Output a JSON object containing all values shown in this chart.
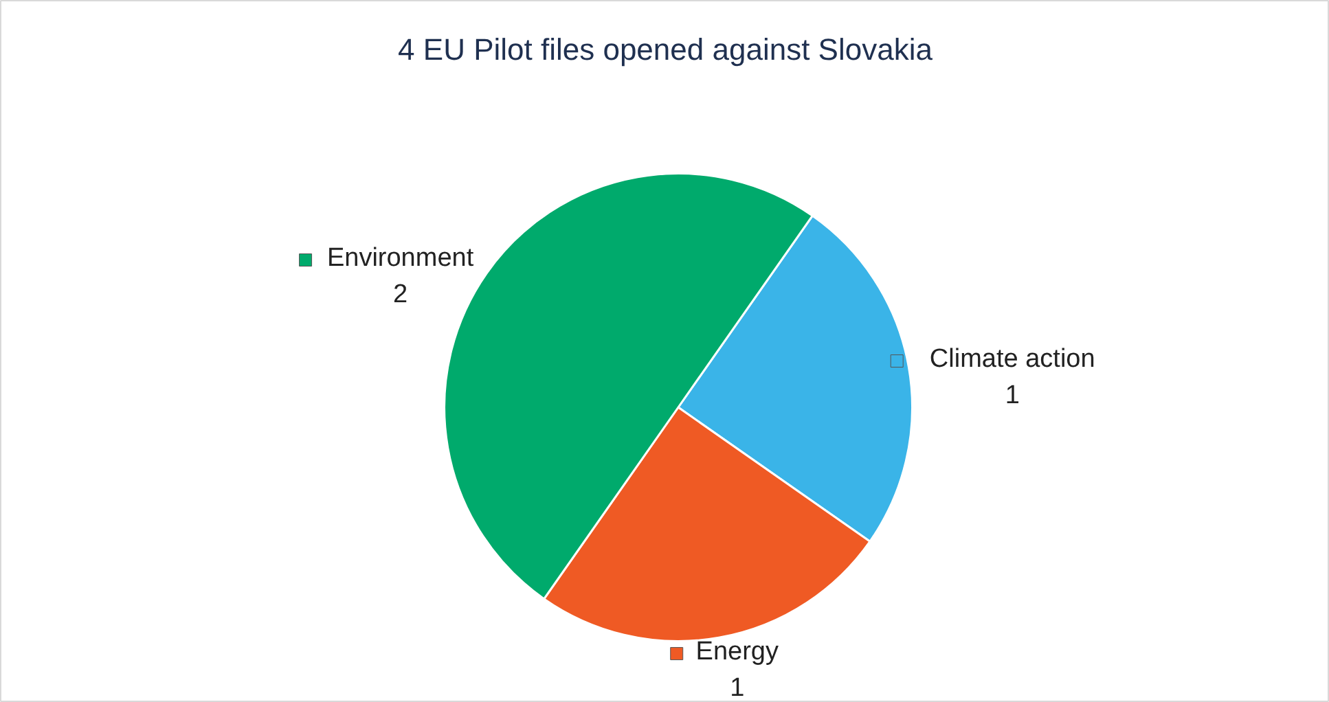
{
  "chart_data": {
    "type": "pie",
    "title": "4 EU Pilot files opened against Slovakia",
    "categories": [
      "Climate action",
      "Energy",
      "Environment"
    ],
    "values": [
      1,
      1,
      2
    ],
    "colors": [
      "#3ab4e8",
      "#ef5a24",
      "#00aa6c"
    ],
    "data_labels": true,
    "legend": "right"
  }
}
